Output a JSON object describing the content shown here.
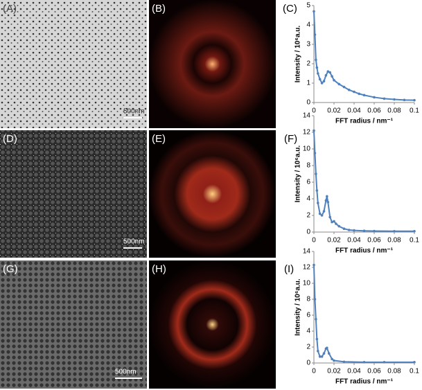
{
  "panel_labels": [
    "(A)",
    "(B)",
    "(C)",
    "(D)",
    "(E)",
    "(F)",
    "(G)",
    "(H)",
    "(I)"
  ],
  "scale_bars": [
    "500nm",
    "500nm",
    "500nm"
  ],
  "chart_data": [
    {
      "type": "line",
      "xlabel": "FFT radius / nm⁻¹",
      "ylabel": "Intensity / 10⁶a.u.",
      "color": "#4f81bd",
      "x": [
        0,
        0.001,
        0.002,
        0.003,
        0.004,
        0.006,
        0.008,
        0.01,
        0.012,
        0.014,
        0.016,
        0.018,
        0.02,
        0.025,
        0.03,
        0.035,
        0.04,
        0.045,
        0.05,
        0.06,
        0.07,
        0.08,
        0.09,
        0.1
      ],
      "values": [
        4.7,
        3.5,
        2.2,
        1.8,
        1.5,
        1.2,
        1.0,
        1.1,
        1.4,
        1.6,
        1.55,
        1.35,
        1.15,
        0.95,
        0.8,
        0.65,
        0.55,
        0.45,
        0.38,
        0.27,
        0.2,
        0.16,
        0.13,
        0.12
      ],
      "xlim": [
        0,
        0.1
      ],
      "xticks": [
        0,
        0.02,
        0.04,
        0.06,
        0.08,
        0.1
      ],
      "ylim": [
        0,
        5
      ],
      "yticks": [
        0,
        1,
        2,
        3,
        4,
        5
      ]
    },
    {
      "type": "line",
      "xlabel": "FFT radius / nm⁻¹",
      "ylabel": "Intensity / 10⁶a.u.",
      "color": "#4f81bd",
      "x": [
        0,
        0.001,
        0.002,
        0.003,
        0.004,
        0.006,
        0.008,
        0.01,
        0.012,
        0.013,
        0.014,
        0.016,
        0.018,
        0.02,
        0.022,
        0.025,
        0.03,
        0.035,
        0.04,
        0.05,
        0.06,
        0.08,
        0.1
      ],
      "values": [
        12.2,
        9.5,
        7,
        5,
        3.5,
        2.2,
        2.0,
        2.5,
        3.8,
        4.3,
        3.6,
        1.8,
        1.2,
        1.3,
        1.0,
        0.7,
        0.4,
        0.25,
        0.2,
        0.15,
        0.12,
        0.1,
        0.1
      ],
      "xlim": [
        0,
        0.1
      ],
      "xticks": [
        0,
        0.02,
        0.04,
        0.06,
        0.08,
        0.1
      ],
      "ylim": [
        0,
        14
      ],
      "yticks": [
        0,
        2,
        4,
        6,
        8,
        10,
        12,
        14
      ]
    },
    {
      "type": "line",
      "xlabel": "FFT radius / nm⁻¹",
      "ylabel": "Intensity / 10⁶a.u.",
      "color": "#4f81bd",
      "x": [
        0,
        0.001,
        0.002,
        0.003,
        0.004,
        0.006,
        0.008,
        0.01,
        0.012,
        0.013,
        0.015,
        0.018,
        0.02,
        0.03,
        0.05,
        0.07,
        0.1
      ],
      "values": [
        12.3,
        8,
        5.5,
        3,
        1.5,
        0.8,
        0.8,
        1.2,
        1.8,
        1.9,
        1.2,
        0.5,
        0.3,
        0.15,
        0.1,
        0.1,
        0.1
      ],
      "xlim": [
        0,
        0.1
      ],
      "xticks": [
        0,
        0.02,
        0.04,
        0.06,
        0.08,
        0.1
      ],
      "ylim": [
        0,
        14
      ],
      "yticks": [
        0,
        2,
        4,
        6,
        8,
        10,
        12,
        14
      ]
    }
  ]
}
